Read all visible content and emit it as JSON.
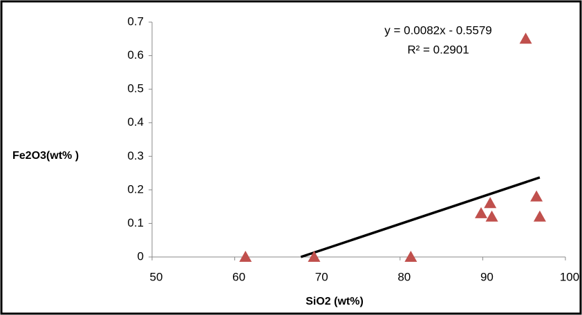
{
  "chart_data": {
    "type": "scatter",
    "x_label": "SiO2 (wt%)",
    "y_label": "Fe2O3(wt% )",
    "series": [
      {
        "color": "#c0504d",
        "x": [
          61.3,
          69.6,
          81.3,
          89.8,
          90.9,
          91.1,
          96.5,
          96.9,
          95.2
        ],
        "values": [
          0,
          0,
          0,
          0.13,
          0.16,
          0.12,
          0.18,
          0.12,
          0.65
        ]
      }
    ],
    "trendline": {
      "color": "#000000",
      "x": [
        68.0,
        96.9
      ],
      "values": [
        0,
        0.237
      ]
    },
    "annotations": [
      "y = 0.0082x - 0.5579",
      "R² = 0.2901"
    ],
    "xlim": [
      50,
      100
    ],
    "xticks": [
      50,
      60,
      70,
      80,
      90,
      100
    ],
    "ylim": [
      0,
      0.7
    ],
    "yticks": [
      0,
      0.1,
      0.2,
      0.3,
      0.4,
      0.5,
      0.6,
      0.7
    ]
  }
}
